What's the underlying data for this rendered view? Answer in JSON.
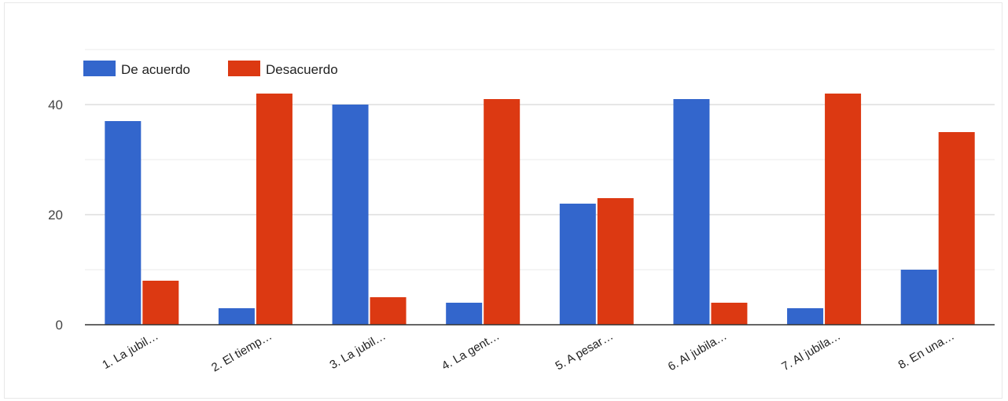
{
  "chart_data": {
    "type": "bar",
    "categories": [
      "1. La jubil…",
      "2. El tiemp…",
      "3. La jubil…",
      "4. La gent…",
      "5. A pesar…",
      "6. Al jubila…",
      "7. Al jubila…",
      "8. En una…"
    ],
    "series": [
      {
        "name": "De acuerdo",
        "color": "#3366cc",
        "values": [
          37,
          3,
          40,
          4,
          22,
          41,
          3,
          10
        ]
      },
      {
        "name": "Desacuerdo",
        "color": "#dc3912",
        "values": [
          8,
          42,
          5,
          41,
          23,
          4,
          42,
          35
        ]
      }
    ],
    "ylim": [
      0,
      50
    ],
    "yticks": [
      0,
      20,
      40
    ],
    "grid": true,
    "legend_position": "top-left"
  }
}
